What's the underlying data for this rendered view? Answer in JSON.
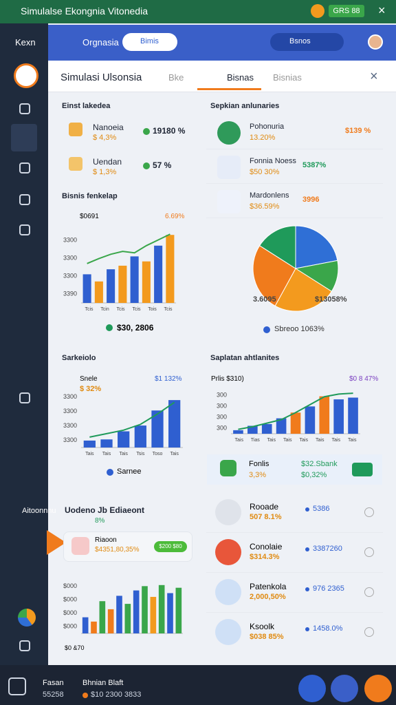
{
  "status": {
    "title": "Simulalse Ekongnia Vitonedia",
    "badge": "GRS 88"
  },
  "header": {
    "brand": "Kexn",
    "search": "Orgnasia",
    "chip": "Bimis",
    "pill": "Bsnos"
  },
  "tabs": {
    "title": "Simulasi Ulsonsia",
    "items": [
      "Bke",
      "Bisnas",
      "Bisnias"
    ]
  },
  "sidebar": {
    "label": "Aitoonnnu"
  },
  "summary": {
    "title": "Einst lakedea",
    "rows": [
      {
        "name": "Nanoeia",
        "sub": "$ 4,3%",
        "value": "19180 %"
      },
      {
        "name": "Uendan",
        "sub": "$ 1,3%",
        "value": "57 %"
      }
    ]
  },
  "overview": {
    "title": "Sepkian anlunaries",
    "rows": [
      {
        "name": "Pohonuria",
        "sub": "13.20%",
        "value": "$139 %"
      },
      {
        "name": "Fonnia Noess",
        "sub": "$50 30%",
        "value": "5387%"
      },
      {
        "name": "Mardonlens",
        "sub": "$36.59%",
        "value": "3996"
      }
    ],
    "pie": {
      "values": [
        22,
        12,
        24,
        26,
        16
      ],
      "colors": [
        "#2f6fd6",
        "#3aa64a",
        "#f39a1e",
        "#f07b1c",
        "#1f9a5a"
      ],
      "labels": [
        "3.6095",
        "$13058%"
      ],
      "legend": "Sbreoo 1063%"
    }
  },
  "chart1": {
    "title": "Bisnis fenkelap",
    "label": "$0691",
    "tag": "6.69%",
    "ylim": [
      0,
      100
    ],
    "yticks": [
      "3390",
      "3300",
      "3300",
      "3300"
    ],
    "xticks": [
      "Tcis",
      "Tcin",
      "Tcis",
      "Tcis",
      "Tois",
      "Tcis"
    ],
    "bars": [
      40,
      30,
      47,
      52,
      65,
      58,
      80,
      95
    ],
    "bar_colors": [
      "#2f5fd0",
      "#f39a1e",
      "#2f5fd0",
      "#f39a1e",
      "#2f5fd0",
      "#f39a1e",
      "#2f5fd0",
      "#f39a1e"
    ],
    "line": [
      55,
      62,
      68,
      72,
      70,
      80,
      88,
      96
    ],
    "line_color": "#3aa64a",
    "footer": "$30, 2806"
  },
  "chart2": {
    "title": "Sarkeiolo",
    "label": "Snele",
    "sub": "$ 32%",
    "tag": "$1 132%",
    "ylim": [
      0,
      100
    ],
    "yticks": [
      "3300",
      "3300",
      "3300",
      "3300"
    ],
    "xticks": [
      "Tais",
      "Tais",
      "Tais",
      "Tsis",
      "Toso",
      "Tais"
    ],
    "bars": [
      12,
      14,
      28,
      38,
      64,
      82
    ],
    "bar_colors": [
      "#2f5fd0",
      "#2f5fd0",
      "#2f5fd0",
      "#2f5fd0",
      "#2f5fd0",
      "#2f5fd0"
    ],
    "line": [
      18,
      24,
      30,
      40,
      58,
      78
    ],
    "line_color": "#1f9a5a",
    "footer": "Sarnee"
  },
  "chart3": {
    "title": "Saplatan ahtlanites",
    "label": "Prlis $310)",
    "tag": "$0 8 47%",
    "ylim": [
      0,
      100
    ],
    "yticks": [
      "300",
      "300",
      "300",
      "300"
    ],
    "xticks": [
      "Tais",
      "Tias",
      "Tais",
      "Tais",
      "Tais",
      "Tais",
      "Tais",
      "Tais"
    ],
    "bars": [
      8,
      18,
      22,
      35,
      48,
      62,
      85,
      78,
      82
    ],
    "bar_colors": [
      "#2f5fd0",
      "#2f5fd0",
      "#2f5fd0",
      "#2f5fd0",
      "#f07b1c",
      "#2f5fd0",
      "#f07b1c",
      "#2f5fd0",
      "#2f5fd0"
    ],
    "line": [
      10,
      16,
      24,
      32,
      48,
      66,
      84,
      90,
      92
    ],
    "line_color": "#1f9a5a",
    "footer": {
      "name": "Fonlis",
      "sub": "3,3%",
      "v1": "$32.Sbank",
      "v2": "$0,32%"
    }
  },
  "chart4": {
    "title": "Uodeno Jb Ediaeont",
    "sub": "8%",
    "item": "Riaoon",
    "item_value": "$4351,80,35%",
    "button": "$200 $80",
    "ylim": [
      0,
      100
    ],
    "yticks": [
      "$000",
      "$000",
      "$000",
      "$000"
    ],
    "footer": "$0 &70",
    "bars": [
      30,
      22,
      60,
      45,
      70,
      55,
      80,
      88,
      68,
      90,
      75,
      85
    ],
    "bar_colors": [
      "#2f5fd0",
      "#f07b1c",
      "#3aa64a",
      "#f07b1c",
      "#2f5fd0",
      "#3aa64a",
      "#2f5fd0",
      "#3aa64a",
      "#f39a1e",
      "#3aa64a",
      "#2f5fd0",
      "#3aa64a"
    ]
  },
  "list": [
    {
      "name": "Rooade",
      "sub": "507 8.1%",
      "value": "5386"
    },
    {
      "name": "Conolaie",
      "sub": "$314.3%",
      "value": "3387260"
    },
    {
      "name": "Patenkola",
      "sub": "2,000,50%",
      "value": "976 2365"
    },
    {
      "name": "Ksoolk",
      "sub": "$038 85%",
      "value": "1458.0%"
    }
  ],
  "footer": {
    "name": "Fasan",
    "sub": "55258",
    "title": "Bhnian Blaft",
    "value": "$10 2300 3833"
  }
}
